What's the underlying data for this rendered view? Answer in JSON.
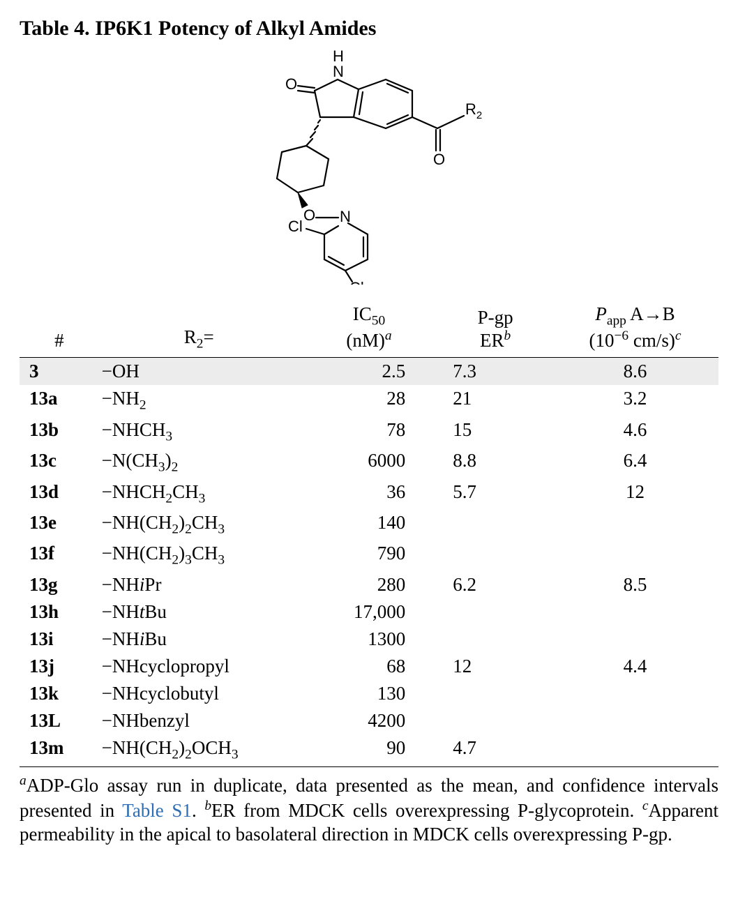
{
  "title": "Table 4. IP6K1 Potency of Alkyl Amides",
  "structure_labels": {
    "H": "H",
    "N1": "N",
    "O1": "O",
    "O2": "O",
    "O3": "O",
    "N2": "N",
    "Cl1": "Cl",
    "Cl2": "Cl",
    "R2": "R"
  },
  "headers": {
    "num": "#",
    "r2_pre": "R",
    "r2_post": "=",
    "ic_pre": "IC",
    "ic_sub": "50",
    "ic_unit": "(nM)",
    "ic_note": "a",
    "pgp_l1": "P-gp",
    "pgp_l2": "ER",
    "pgp_note": "b",
    "papp_l1a": "P",
    "papp_l1b": "app",
    "papp_l1c": " A→B",
    "papp_l2a": "(10",
    "papp_l2b": "−6",
    "papp_l2c": " cm/s)",
    "papp_note": "c"
  },
  "rows": [
    {
      "id": "3",
      "r2_html": "−OH",
      "ic": "2.5",
      "pgp": "7.3",
      "papp": "8.6"
    },
    {
      "id": "13a",
      "r2_html": "−NH<span class='sub'>2</span>",
      "ic": "28",
      "pgp": "21",
      "papp": "3.2"
    },
    {
      "id": "13b",
      "r2_html": "−NHCH<span class='sub'>3</span>",
      "ic": "78",
      "pgp": "15",
      "papp": "4.6"
    },
    {
      "id": "13c",
      "r2_html": "−N(CH<span class='sub'>3</span>)<span class='sub'>2</span>",
      "ic": "6000",
      "pgp": "8.8",
      "papp": "6.4"
    },
    {
      "id": "13d",
      "r2_html": "−NHCH<span class='sub'>2</span>CH<span class='sub'>3</span>",
      "ic": "36",
      "pgp": "5.7",
      "papp": "12"
    },
    {
      "id": "13e",
      "r2_html": "−NH(CH<span class='sub'>2</span>)<span class='sub'>2</span>CH<span class='sub'>3</span>",
      "ic": "140",
      "pgp": "",
      "papp": ""
    },
    {
      "id": "13f",
      "r2_html": "−NH(CH<span class='sub'>2</span>)<span class='sub'>3</span>CH<span class='sub'>3</span>",
      "ic": "790",
      "pgp": "",
      "papp": ""
    },
    {
      "id": "13g",
      "r2_html": "−NH<span class='ital'>i</span>Pr",
      "ic": "280",
      "pgp": "6.2",
      "papp": "8.5"
    },
    {
      "id": "13h",
      "r2_html": "−NH<span class='ital'>t</span>Bu",
      "ic": "17,000",
      "pgp": "",
      "papp": ""
    },
    {
      "id": "13i",
      "r2_html": "−NH<span class='ital'>i</span>Bu",
      "ic": "1300",
      "pgp": "",
      "papp": ""
    },
    {
      "id": "13j",
      "r2_html": "−NHcyclopropyl",
      "ic": "68",
      "pgp": "12",
      "papp": "4.4"
    },
    {
      "id": "13k",
      "r2_html": "−NHcyclobutyl",
      "ic": "130",
      "pgp": "",
      "papp": ""
    },
    {
      "id": "13L",
      "r2_html": "−NHbenzyl",
      "ic": "4200",
      "pgp": "",
      "papp": ""
    },
    {
      "id": "13m",
      "r2_html": "−NH(CH<span class='sub'>2</span>)<span class='sub'>2</span>OCH<span class='sub'>3</span>",
      "ic": "90",
      "pgp": "4.7",
      "papp": ""
    }
  ],
  "footnotes": {
    "a_sup": "a",
    "a_text": "ADP-Glo assay run in duplicate, data presented as the mean, and confidence intervals presented in ",
    "a_link": "Table S1",
    "a_tail": ". ",
    "b_sup": "b",
    "b_text": "ER from MDCK cells overexpressing P-glycoprotein. ",
    "c_sup": "c",
    "c_text": "Apparent permeability in the apical to basolateral direction in MDCK cells overexpressing P-gp."
  },
  "style": {
    "title_fontsize_pt": 22,
    "body_fontsize_pt": 20,
    "link_color": "#2e6db4",
    "highlight_row_bg": "#ececec",
    "rule_color": "#000000",
    "background_color": "#ffffff"
  }
}
